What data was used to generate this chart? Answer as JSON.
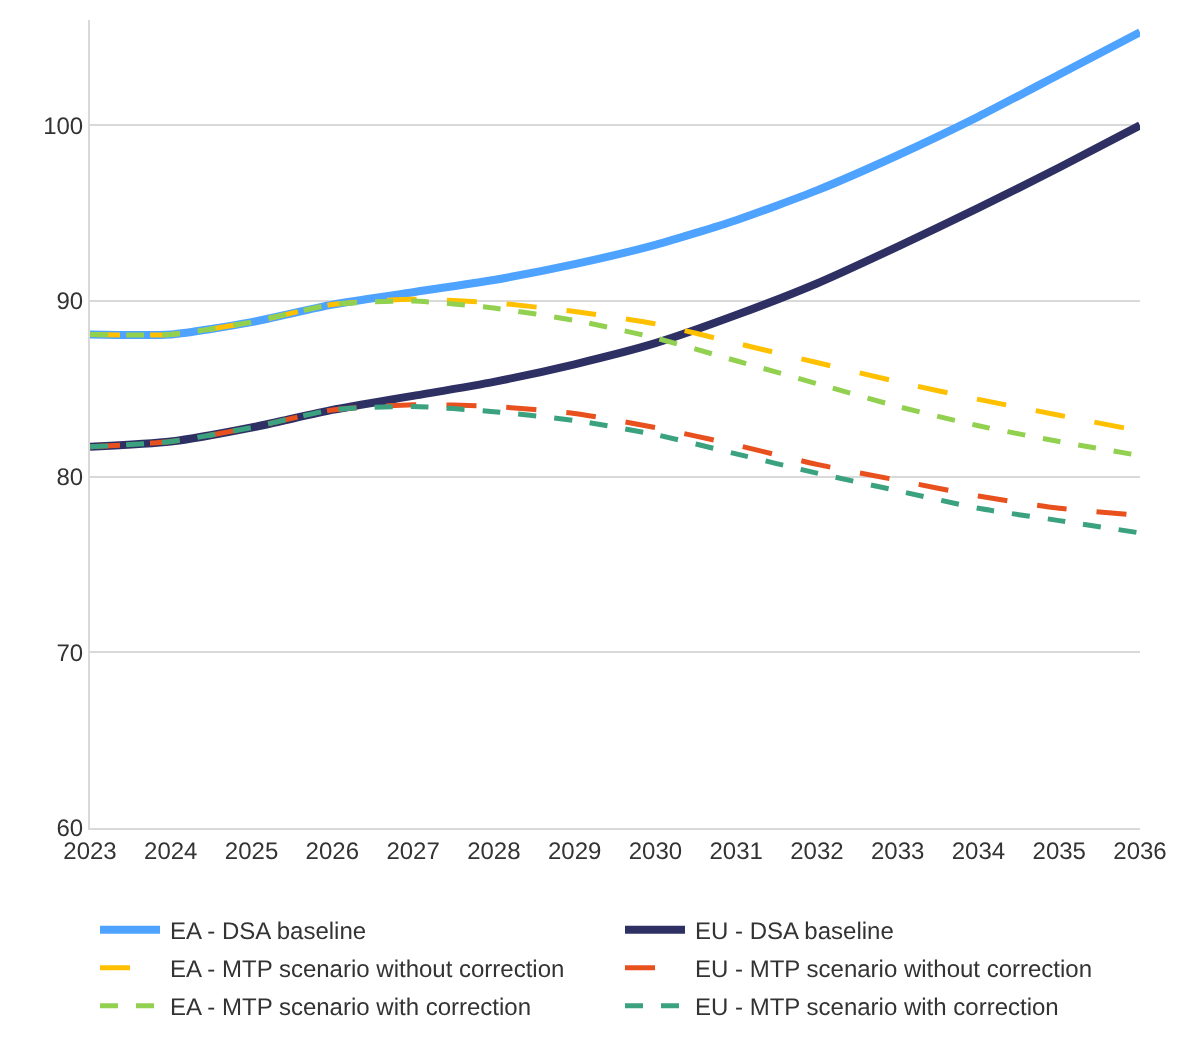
{
  "chart_data": {
    "type": "line",
    "categories": [
      "2023",
      "2024",
      "2025",
      "2026",
      "2027",
      "2028",
      "2029",
      "2030",
      "2031",
      "2032",
      "2033",
      "2034",
      "2035",
      "2036"
    ],
    "ylim": [
      60,
      106
    ],
    "yticks": [
      60,
      70,
      80,
      90,
      100
    ],
    "grid": "y",
    "legend": "bottom",
    "marker": "none",
    "series": [
      {
        "name": "EA - DSA baseline",
        "color": "#4da3ff",
        "line_style": "solid",
        "values": [
          88.1,
          88.1,
          88.8,
          89.8,
          90.5,
          91.2,
          92.1,
          93.2,
          94.6,
          96.3,
          98.3,
          100.5,
          102.9,
          105.3
        ]
      },
      {
        "name": "EU - DSA baseline",
        "color": "#2e3063",
        "line_style": "solid",
        "values": [
          81.7,
          82.0,
          82.8,
          83.8,
          84.6,
          85.4,
          86.4,
          87.6,
          89.2,
          91.0,
          93.1,
          95.3,
          97.6,
          100.0
        ]
      },
      {
        "name": "EA - MTP scenario without correction",
        "color": "#ffc000",
        "line_style": "dashed",
        "values": [
          88.1,
          88.1,
          88.8,
          89.8,
          90.1,
          89.9,
          89.4,
          88.7,
          87.6,
          86.5,
          85.4,
          84.4,
          83.5,
          82.6
        ]
      },
      {
        "name": "EU - MTP scenario without correction",
        "color": "#e8501e",
        "line_style": "dashed",
        "values": [
          81.7,
          82.0,
          82.8,
          83.8,
          84.1,
          84.0,
          83.6,
          82.8,
          81.8,
          80.7,
          79.8,
          78.9,
          78.2,
          77.8
        ]
      },
      {
        "name": "EA - MTP scenario with correction",
        "color": "#92d050",
        "line_style": "dotted",
        "values": [
          88.1,
          88.1,
          88.8,
          89.8,
          90.0,
          89.6,
          88.9,
          87.9,
          86.6,
          85.3,
          84.0,
          82.9,
          82.0,
          81.2
        ]
      },
      {
        "name": "EU - MTP scenario with correction",
        "color": "#3aa27e",
        "line_style": "dotted",
        "values": [
          81.7,
          82.0,
          82.8,
          83.8,
          84.0,
          83.7,
          83.2,
          82.4,
          81.3,
          80.2,
          79.2,
          78.2,
          77.5,
          76.8
        ]
      }
    ]
  }
}
